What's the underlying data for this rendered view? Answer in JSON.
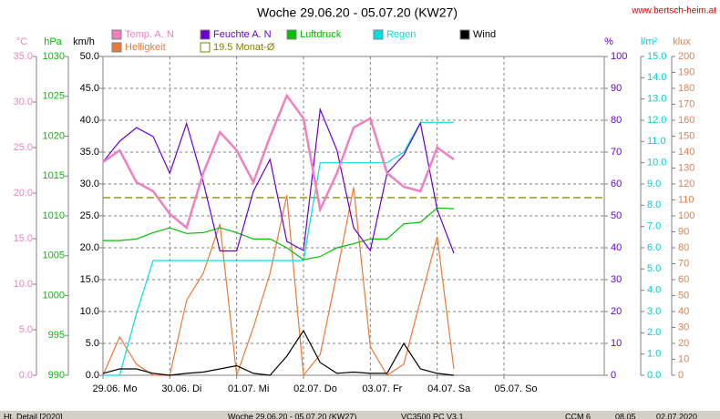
{
  "chart_data": {
    "type": "line",
    "title": "Woche 29.06.20 - 05.07.20 (KW27)",
    "source": "www.bertsch-heim.at",
    "grid": true,
    "x": [
      0,
      6,
      12,
      18,
      24,
      30,
      36,
      42,
      48,
      54,
      60,
      66,
      72,
      78,
      84,
      90,
      96,
      102,
      108,
      114,
      120,
      126
    ],
    "xlim": [
      0,
      180
    ],
    "xticks": [
      {
        "value": 0,
        "label": "29.06. Mo"
      },
      {
        "value": 24,
        "label": "30.06. Di"
      },
      {
        "value": 48,
        "label": "01.07. Mi"
      },
      {
        "value": 72,
        "label": "02.07. Do"
      },
      {
        "value": 96,
        "label": "03.07. Fr"
      },
      {
        "value": 120,
        "label": "04.07. Sa"
      },
      {
        "value": 144,
        "label": "05.07. So"
      }
    ],
    "axes": [
      {
        "id": "temp",
        "label": "°C",
        "color": "#f080c0",
        "lim": [
          0,
          35
        ],
        "ticks": [
          {
            "value": 0,
            "label": "0.0"
          },
          {
            "value": 5,
            "label": "5.0"
          },
          {
            "value": 10,
            "label": "10.0"
          },
          {
            "value": 15,
            "label": "15.0"
          },
          {
            "value": 20,
            "label": "20.0"
          },
          {
            "value": 25,
            "label": "25.0"
          },
          {
            "value": 30,
            "label": "30.0"
          },
          {
            "value": 35,
            "label": "35.0"
          }
        ]
      },
      {
        "id": "press",
        "label": "hPa",
        "color": "#00c000",
        "lim": [
          990,
          1030
        ],
        "ticks": [
          990,
          995,
          1000,
          1005,
          1010,
          1015,
          1020,
          1025,
          1030
        ]
      },
      {
        "id": "wind",
        "label": "km/h",
        "color": "#000000",
        "lim": [
          0,
          50
        ],
        "ticks": [
          {
            "value": 0,
            "label": "0.0"
          },
          {
            "value": 5,
            "label": "5.0"
          },
          {
            "value": 10,
            "label": "10.0"
          },
          {
            "value": 15,
            "label": "15.0"
          },
          {
            "value": 20,
            "label": "20.0"
          },
          {
            "value": 25,
            "label": "25.0"
          },
          {
            "value": 30,
            "label": "30.0"
          },
          {
            "value": 35,
            "label": "35.0"
          },
          {
            "value": 40,
            "label": "40.0"
          },
          {
            "value": 45,
            "label": "45.0"
          },
          {
            "value": 50,
            "label": "50.0"
          }
        ]
      },
      {
        "id": "hum",
        "label": "%",
        "color": "#6a00d0",
        "lim": [
          0,
          100
        ],
        "ticks": [
          0,
          10,
          20,
          30,
          40,
          50,
          60,
          70,
          80,
          90,
          100
        ]
      },
      {
        "id": "rain",
        "label": "l/m²",
        "color": "#00d0d0",
        "lim": [
          0,
          15
        ],
        "ticks": [
          {
            "value": 0,
            "label": "0.0"
          },
          {
            "value": 1,
            "label": "1.0"
          },
          {
            "value": 2,
            "label": "2.0"
          },
          {
            "value": 3,
            "label": "3.0"
          },
          {
            "value": 4,
            "label": "4.0"
          },
          {
            "value": 5,
            "label": "5.0"
          },
          {
            "value": 6,
            "label": "6.0"
          },
          {
            "value": 7,
            "label": "7.0"
          },
          {
            "value": 8,
            "label": "8.0"
          },
          {
            "value": 9,
            "label": "9.0"
          },
          {
            "value": 10,
            "label": "10.0"
          },
          {
            "value": 11,
            "label": "11.0"
          },
          {
            "value": 12,
            "label": "12.0"
          },
          {
            "value": 13,
            "label": "13.0"
          },
          {
            "value": 14,
            "label": "14.0"
          },
          {
            "value": 15,
            "label": "15.0"
          }
        ]
      },
      {
        "id": "lux",
        "label": "klux",
        "color": "#e0804a",
        "lim": [
          0,
          200
        ],
        "ticks": [
          0,
          10,
          20,
          30,
          40,
          50,
          60,
          70,
          80,
          90,
          100,
          110,
          120,
          130,
          140,
          150,
          160,
          170,
          180,
          190,
          200
        ]
      }
    ],
    "series": [
      {
        "name": "Temp. A. N",
        "color": "#f080c0",
        "axis": "temp",
        "values": [
          23.4,
          24.7,
          21.2,
          20.2,
          17.7,
          16.2,
          22.2,
          26.7,
          24.7,
          21.2,
          26.2,
          30.7,
          28.2,
          18.2,
          22.2,
          27.2,
          28.2,
          22.2,
          20.7,
          20.2,
          25.0,
          23.7
        ]
      },
      {
        "name": "Helligkeit",
        "color": "#e87a3a",
        "axis": "lux",
        "values": [
          0,
          24,
          7,
          0,
          0,
          47,
          64,
          95,
          0,
          30,
          64,
          113,
          0,
          13,
          64,
          118,
          18,
          0,
          7,
          47,
          87,
          4
        ]
      },
      {
        "name": "Feuchte A. N",
        "color": "#6a00d0",
        "axis": "hum",
        "values": [
          66.9,
          73.4,
          77.7,
          74.9,
          63.4,
          79,
          60.6,
          39,
          39,
          57.7,
          67.7,
          42,
          39.1,
          83.4,
          70.6,
          46.3,
          39.1,
          63.4,
          69.1,
          79.1,
          52,
          38.3
        ]
      },
      {
        "name": "Luftdruck",
        "color": "#00c000",
        "axis": "press",
        "values": [
          1006.9,
          1006.9,
          1007.1,
          1007.9,
          1008.5,
          1007.8,
          1007.9,
          1008.5,
          1007.9,
          1007.1,
          1007.1,
          1006.0,
          1004.5,
          1004.9,
          1006.0,
          1006.5,
          1007.1,
          1007.1,
          1009.0,
          1009.2,
          1011.0,
          1010.9
        ]
      },
      {
        "name": "Regen",
        "color": "#00e0e0",
        "axis": "rain",
        "values": [
          0,
          0,
          2.9,
          5.4,
          5.4,
          5.4,
          5.4,
          5.4,
          5.4,
          5.4,
          5.4,
          5.4,
          5.4,
          10.0,
          10.0,
          10.0,
          10.0,
          10.0,
          10.5,
          11.9,
          11.9,
          11.9
        ]
      },
      {
        "name": "Wind",
        "color": "#000000",
        "axis": "wind",
        "values": [
          0.3,
          1,
          1,
          0.3,
          0,
          0.3,
          0.5,
          1,
          1.5,
          0.3,
          0,
          3,
          7,
          2,
          0.3,
          0.5,
          0.3,
          0.3,
          5,
          1,
          0.3,
          0
        ]
      }
    ],
    "monthly_avg": {
      "value": 19.5,
      "label": "19.5 Monat-Ø",
      "axis": "temp",
      "color": "#808000"
    },
    "status_bar": [
      "Ht. Detail [2020]",
      "Woche 29.06.20 - 05.07.20 (KW27)",
      "VC3500 PC V3.1",
      "CCM 6",
      "08.05",
      "02.07.2020"
    ]
  }
}
